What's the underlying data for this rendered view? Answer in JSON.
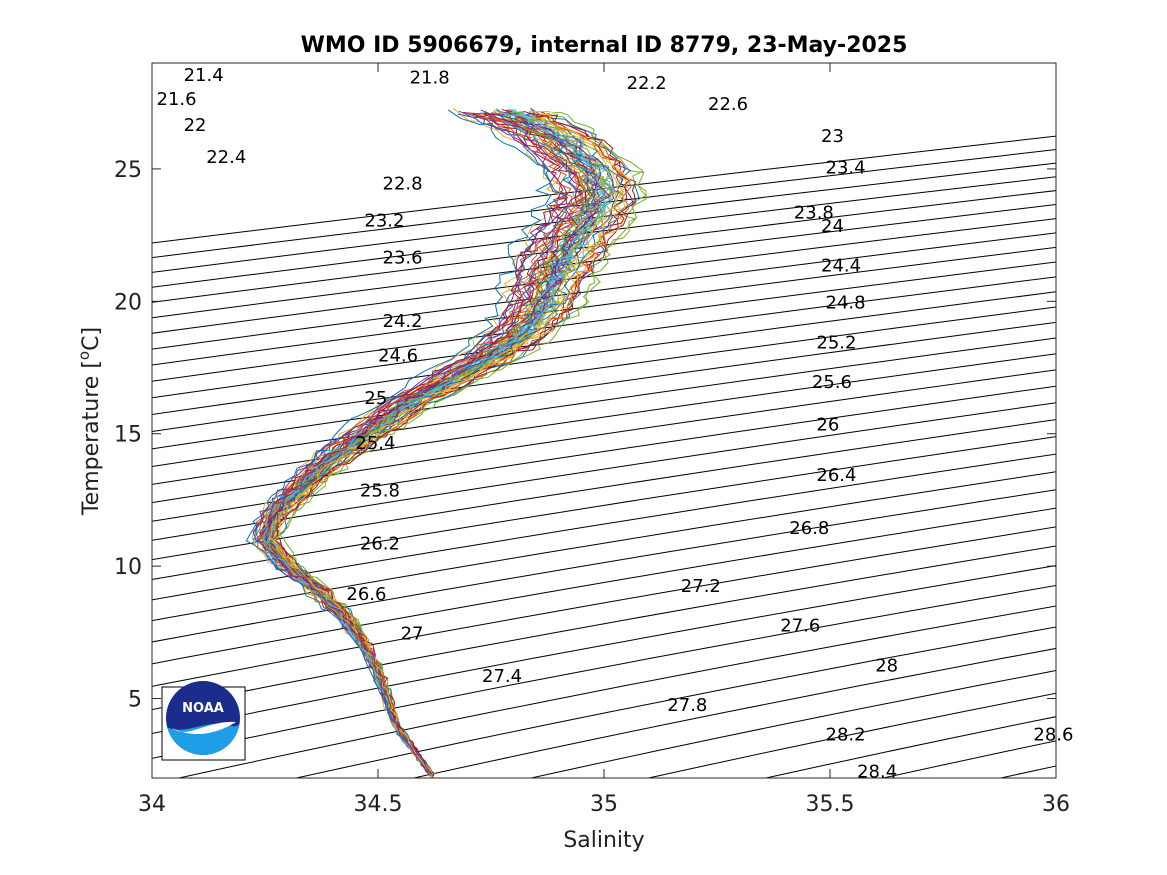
{
  "chart_data": {
    "type": "line",
    "title": "WMO ID 5906679, internal ID 8779, 23-May-2025",
    "xlabel": "Salinity",
    "ylabel_main": "Temperature [",
    "ylabel_sup": "o",
    "ylabel_end": "C]",
    "xlim": [
      34,
      36
    ],
    "ylim": [
      2,
      29
    ],
    "x_ticks": [
      34,
      34.5,
      35,
      35.5,
      36
    ],
    "x_tick_labels": [
      "34",
      "34.5",
      "35",
      "35.5",
      "36"
    ],
    "y_ticks": [
      5,
      10,
      15,
      20,
      25
    ],
    "y_tick_labels": [
      "5",
      "10",
      "15",
      "20",
      "25"
    ],
    "grid": false,
    "density_contours": {
      "levels_from": 21.4,
      "levels_to": 28.6,
      "levels_step": 0.2,
      "color": "#000000",
      "labels": [
        {
          "text": "21.4",
          "s": 34.07,
          "t": 28.55
        },
        {
          "text": "21.6",
          "s": 34.01,
          "t": 27.65
        },
        {
          "text": "21.8",
          "s": 34.57,
          "t": 28.45
        },
        {
          "text": "22",
          "s": 34.07,
          "t": 26.65
        },
        {
          "text": "22.2",
          "s": 35.05,
          "t": 28.25
        },
        {
          "text": "22.4",
          "s": 34.12,
          "t": 25.45
        },
        {
          "text": "22.6",
          "s": 35.23,
          "t": 27.45
        },
        {
          "text": "22.8",
          "s": 34.51,
          "t": 24.45
        },
        {
          "text": "23",
          "s": 35.48,
          "t": 26.25
        },
        {
          "text": "23.2",
          "s": 34.47,
          "t": 23.05
        },
        {
          "text": "23.4",
          "s": 35.49,
          "t": 25.05
        },
        {
          "text": "23.6",
          "s": 34.51,
          "t": 21.65
        },
        {
          "text": "23.8",
          "s": 35.42,
          "t": 23.35
        },
        {
          "text": "24",
          "s": 35.48,
          "t": 22.85
        },
        {
          "text": "24.2",
          "s": 34.51,
          "t": 19.25
        },
        {
          "text": "24.4",
          "s": 35.48,
          "t": 21.35
        },
        {
          "text": "24.6",
          "s": 34.5,
          "t": 17.95
        },
        {
          "text": "24.8",
          "s": 35.49,
          "t": 19.95
        },
        {
          "text": "25",
          "s": 34.47,
          "t": 16.35
        },
        {
          "text": "25.2",
          "s": 35.47,
          "t": 18.45
        },
        {
          "text": "25.4",
          "s": 34.45,
          "t": 14.65
        },
        {
          "text": "25.6",
          "s": 35.46,
          "t": 16.95
        },
        {
          "text": "25.8",
          "s": 34.46,
          "t": 12.85
        },
        {
          "text": "26",
          "s": 35.47,
          "t": 15.35
        },
        {
          "text": "26.2",
          "s": 34.46,
          "t": 10.85
        },
        {
          "text": "26.4",
          "s": 35.47,
          "t": 13.45
        },
        {
          "text": "26.6",
          "s": 34.43,
          "t": 8.95
        },
        {
          "text": "26.8",
          "s": 35.41,
          "t": 11.45
        },
        {
          "text": "27",
          "s": 34.55,
          "t": 7.45
        },
        {
          "text": "27.2",
          "s": 35.17,
          "t": 9.25
        },
        {
          "text": "27.4",
          "s": 34.73,
          "t": 5.85
        },
        {
          "text": "27.6",
          "s": 35.39,
          "t": 7.75
        },
        {
          "text": "27.8",
          "s": 35.14,
          "t": 4.75
        },
        {
          "text": "28",
          "s": 35.6,
          "t": 6.25
        },
        {
          "text": "28.2",
          "s": 35.49,
          "t": 3.65
        },
        {
          "text": "28.4",
          "s": 35.56,
          "t": 2.25
        },
        {
          "text": "28.6",
          "s": 35.95,
          "t": 3.65
        }
      ]
    },
    "profile_colors": [
      "#0072BD",
      "#D95319",
      "#EDB120",
      "#7E2F8E",
      "#77AC30",
      "#4DBEEE",
      "#A2142F"
    ],
    "profile_template": [
      [
        34.62,
        2.1
      ],
      [
        34.58,
        3.0
      ],
      [
        34.54,
        4.0
      ],
      [
        34.52,
        5.0
      ],
      [
        34.5,
        6.0
      ],
      [
        34.47,
        7.0
      ],
      [
        34.43,
        8.0
      ],
      [
        34.37,
        9.0
      ],
      [
        34.3,
        10.0
      ],
      [
        34.25,
        11.0
      ],
      [
        34.27,
        12.0
      ],
      [
        34.33,
        13.0
      ],
      [
        34.39,
        14.0
      ],
      [
        34.47,
        15.0
      ],
      [
        34.55,
        16.0
      ],
      [
        34.65,
        17.0
      ],
      [
        34.75,
        18.0
      ],
      [
        34.82,
        19.0
      ],
      [
        34.86,
        20.0
      ],
      [
        34.88,
        21.0
      ],
      [
        34.91,
        22.0
      ],
      [
        34.95,
        23.0
      ],
      [
        34.98,
        24.0
      ],
      [
        34.96,
        25.0
      ],
      [
        34.9,
        26.0
      ],
      [
        34.82,
        26.8
      ],
      [
        34.75,
        27.3
      ]
    ],
    "profile_count": 60,
    "logo": {
      "text": "NOAA",
      "colors": {
        "dark_blue": "#1B2C8C",
        "light_blue": "#1E9EE6"
      }
    }
  }
}
